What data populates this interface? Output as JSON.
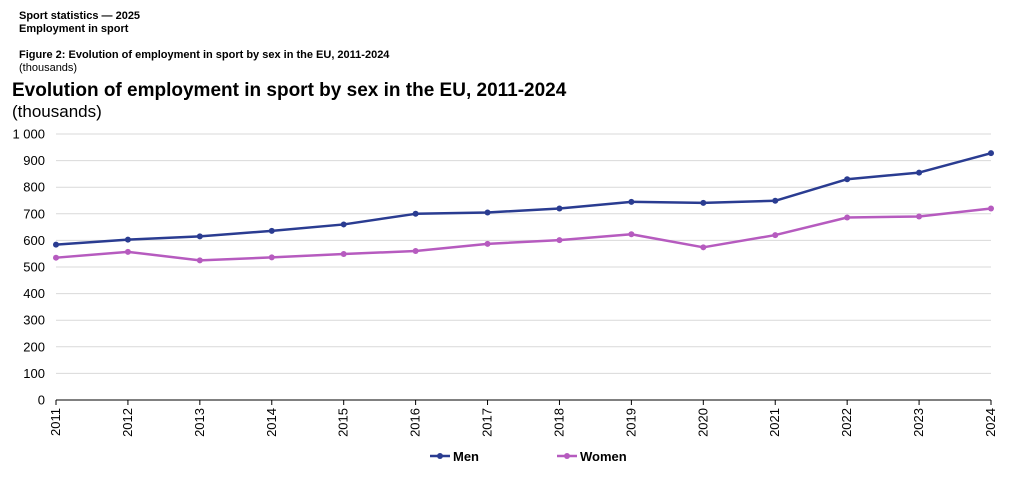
{
  "header": {
    "line1": "Sport statistics — 2025",
    "line2": "Employment in sport",
    "figure_caption": "Figure 2: Evolution of employment in sport by sex in the EU, 2011-2024",
    "figure_unit": "(thousands)"
  },
  "chart_data": {
    "type": "line",
    "title": "Evolution of employment in sport by sex in the EU, 2011-2024",
    "subtitle": "(thousands)",
    "categories": [
      "2011",
      "2012",
      "2013",
      "2014",
      "2015",
      "2016",
      "2017",
      "2018",
      "2019",
      "2020",
      "2021",
      "2022",
      "2023",
      "2024"
    ],
    "series": [
      {
        "name": "Men",
        "color": "#2a3c91",
        "values": [
          584,
          603,
          615,
          636,
          660,
          700,
          705,
          720,
          745,
          741,
          749,
          830,
          855,
          928
        ]
      },
      {
        "name": "Women",
        "color": "#b65bbf",
        "values": [
          535,
          557,
          525,
          536,
          549,
          560,
          587,
          601,
          623,
          574,
          620,
          686,
          690,
          720
        ]
      }
    ],
    "ylim": [
      0,
      1000
    ],
    "yticks": [
      0,
      100,
      200,
      300,
      400,
      500,
      600,
      700,
      800,
      900,
      1000
    ],
    "ytick_labels": [
      "0",
      "100",
      "200",
      "300",
      "400",
      "500",
      "600",
      "700",
      "800",
      "900",
      "1 000"
    ],
    "grid": true,
    "legend": "bottom-center"
  }
}
